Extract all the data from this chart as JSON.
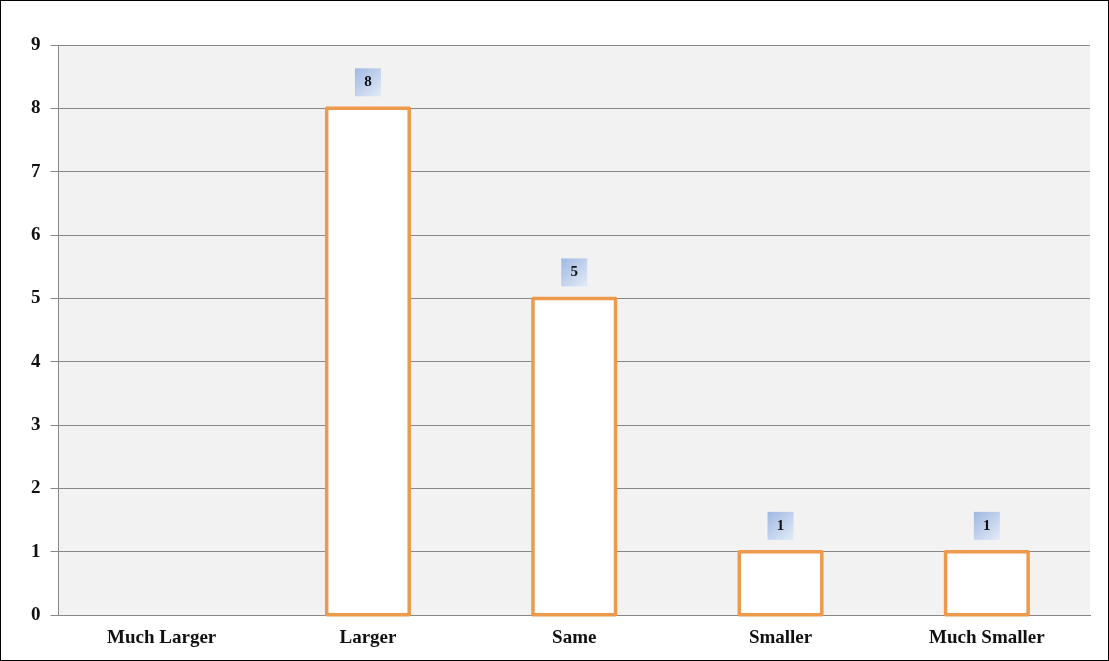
{
  "chart_data": {
    "type": "bar",
    "categories": [
      "Much Larger",
      "Larger",
      "Same",
      "Smaller",
      "Much Smaller"
    ],
    "values": [
      0,
      8,
      5,
      1,
      1
    ],
    "color": "#ffffff",
    "value_labels": [
      null,
      "8",
      "5",
      "1",
      "1"
    ],
    "ylim": [
      0,
      9
    ],
    "yticks": [
      0,
      1,
      2,
      3,
      4,
      5,
      6,
      7,
      8,
      9
    ],
    "grid": "y",
    "legend": false
  }
}
